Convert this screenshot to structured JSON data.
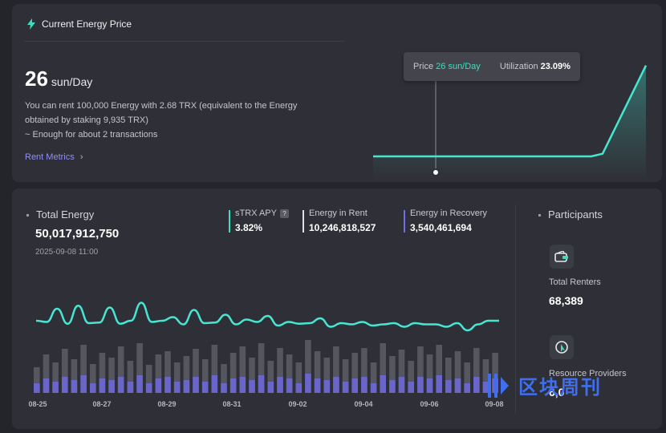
{
  "header": {
    "title": "Current Energy Price",
    "icon": "lightning-icon"
  },
  "price": {
    "value": "26",
    "unit": "sun/Day",
    "description_1": "You can rent 100,000 Energy with 2.68 TRX (equivalent to the Energy",
    "description_2": "obtained by staking 9,935 TRX)",
    "description_3": "~ Enough for about 2 transactions",
    "link": "Rent Metrics",
    "link_arrow": "›"
  },
  "tooltip": {
    "price_label": "Price",
    "price_value": "26 sun/Day",
    "utilization_label": "Utilization",
    "utilization_value": "23.09%"
  },
  "price_series": [
    26,
    26,
    26,
    26,
    26,
    26,
    26,
    26,
    26,
    27,
    60
  ],
  "total_energy": {
    "title": "Total Energy",
    "value": "50,017,912,750",
    "date": "2025-09-08 11:00"
  },
  "metrics": [
    {
      "label": "sTRX APY",
      "value": "3.82%",
      "color": "#3ce0c0",
      "help": "?"
    },
    {
      "label": "Energy in Rent",
      "value": "10,246,818,527",
      "color": "#e0e0e0",
      "help": ""
    },
    {
      "label": "Energy in Recovery",
      "value": "3,540,461,694",
      "color": "#6f6fe8",
      "help": ""
    }
  ],
  "chart_data": {
    "type": "line",
    "x_ticks": [
      "08-25",
      "08-27",
      "08-29",
      "08-31",
      "09-02",
      "09-04",
      "09-06",
      "09-08"
    ],
    "series": [
      {
        "values": [
          80,
          82,
          60,
          85,
          55,
          84,
          83,
          58,
          85,
          80,
          50,
          82,
          80,
          74,
          86,
          62,
          84,
          83,
          70,
          86,
          78,
          82,
          72,
          88,
          82,
          85,
          84,
          76,
          90,
          84,
          86,
          82,
          88,
          86,
          84,
          90,
          84,
          86,
          86,
          90,
          84,
          96,
          86,
          80,
          80
        ]
      }
    ],
    "bars_rent": [
      32,
      48,
      38,
      55,
      42,
      60,
      36,
      50,
      44,
      58,
      40,
      62,
      35,
      48,
      52,
      38,
      46,
      55,
      42,
      60,
      36,
      50,
      58,
      44,
      62,
      40,
      56,
      48,
      38,
      66,
      52,
      44,
      58,
      42,
      50,
      56,
      38,
      62,
      46,
      54,
      40,
      58,
      48,
      60,
      44,
      52,
      38,
      56,
      42,
      50
    ],
    "bars_recovery": [
      12,
      18,
      14,
      20,
      16,
      22,
      12,
      18,
      16,
      20,
      14,
      22,
      12,
      18,
      20,
      14,
      16,
      20,
      14,
      22,
      12,
      18,
      20,
      16,
      22,
      14,
      20,
      18,
      12,
      24,
      18,
      16,
      20,
      14,
      18,
      20,
      12,
      22,
      16,
      20,
      14,
      20,
      18,
      22,
      16,
      18,
      12,
      20,
      14,
      18
    ],
    "colors": {
      "line": "#47e6d2",
      "rent": "#55565e",
      "recovery": "#6a65c8"
    }
  },
  "participants": {
    "title": "Participants",
    "renters_label": "Total Renters",
    "renters_value": "68,389",
    "renters_icon": "wallet-icon",
    "providers_label": "Resource Providers",
    "providers_value": "6,0",
    "providers_icon": "cursor-icon"
  },
  "watermark": {
    "text": "区块周刊",
    "icon": "watermark-logo-icon"
  }
}
